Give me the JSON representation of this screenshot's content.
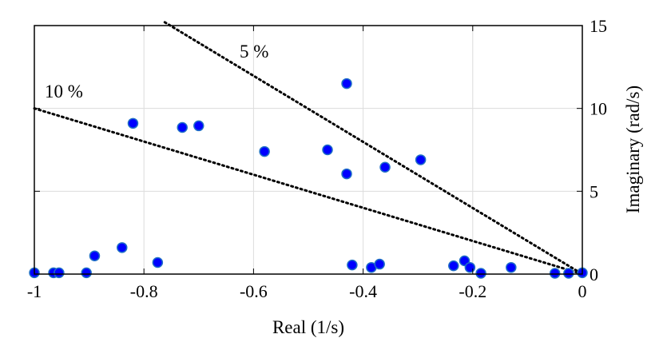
{
  "chart_data": {
    "type": "scatter",
    "xlabel": "Real (1/s)",
    "ylabel": "Imaginary (rad/s)",
    "xlim": [
      -1,
      0
    ],
    "ylim": [
      0,
      15
    ],
    "x_ticks": [
      -1,
      -0.8,
      -0.6,
      -0.4,
      -0.2,
      0
    ],
    "x_tick_labels": [
      "-1",
      "-0.8",
      "-0.6",
      "-0.4",
      "-0.2",
      "0"
    ],
    "y_ticks": [
      0,
      5,
      10,
      15
    ],
    "y_tick_labels": [
      "0",
      "5",
      "10",
      "15"
    ],
    "y_axis_side": "right",
    "grid": true,
    "marker_fill": "#0000ff",
    "marker_edge": "#1f6fc5",
    "series": [
      {
        "points": [
          {
            "x": -1.0,
            "y": 0.08
          },
          {
            "x": -0.965,
            "y": 0.08
          },
          {
            "x": -0.955,
            "y": 0.08
          },
          {
            "x": -0.905,
            "y": 0.08
          },
          {
            "x": -0.89,
            "y": 1.1
          },
          {
            "x": -0.84,
            "y": 1.6
          },
          {
            "x": -0.82,
            "y": 9.1
          },
          {
            "x": -0.775,
            "y": 0.7
          },
          {
            "x": -0.73,
            "y": 8.85
          },
          {
            "x": -0.7,
            "y": 8.95
          },
          {
            "x": -0.58,
            "y": 7.4
          },
          {
            "x": -0.465,
            "y": 7.5
          },
          {
            "x": -0.43,
            "y": 11.5
          },
          {
            "x": -0.43,
            "y": 6.05
          },
          {
            "x": -0.42,
            "y": 0.55
          },
          {
            "x": -0.385,
            "y": 0.4
          },
          {
            "x": -0.37,
            "y": 0.6
          },
          {
            "x": -0.36,
            "y": 6.45
          },
          {
            "x": -0.295,
            "y": 6.9
          },
          {
            "x": -0.235,
            "y": 0.5
          },
          {
            "x": -0.215,
            "y": 0.8
          },
          {
            "x": -0.205,
            "y": 0.4
          },
          {
            "x": -0.185,
            "y": 0.05
          },
          {
            "x": -0.13,
            "y": 0.4
          },
          {
            "x": -0.05,
            "y": 0.05
          },
          {
            "x": -0.025,
            "y": 0.05
          },
          {
            "x": 0.0,
            "y": 0.08
          }
        ]
      }
    ],
    "damping_lines": [
      {
        "label": "5 %",
        "from": [
          -0.762,
          15.2
        ],
        "to": [
          0,
          0
        ]
      },
      {
        "label": "10 %",
        "from": [
          -1.0,
          10.0
        ],
        "to": [
          0,
          0
        ]
      }
    ]
  }
}
